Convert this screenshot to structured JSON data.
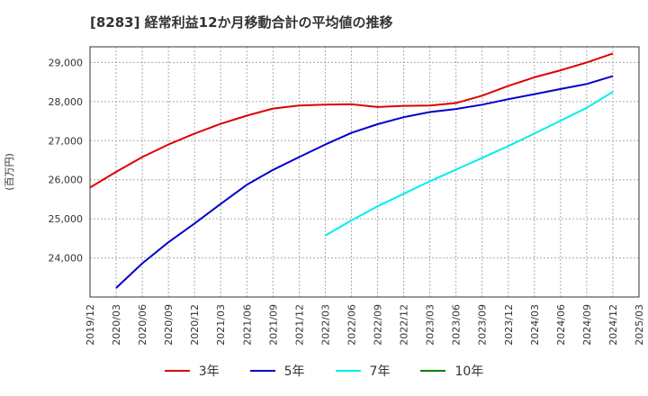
{
  "title": "[8283]  経常利益12か月移動合計の平均値の推移",
  "chart_data": {
    "type": "line",
    "title": "[8283]  経常利益12か月移動合計の平均値の推移",
    "ylabel": "(百万円)",
    "xlabel": "",
    "x_ticks": [
      "2019/12",
      "2020/03",
      "2020/06",
      "2020/09",
      "2020/12",
      "2021/03",
      "2021/06",
      "2021/09",
      "2021/12",
      "2022/03",
      "2022/06",
      "2022/09",
      "2022/12",
      "2023/03",
      "2023/06",
      "2023/09",
      "2023/12",
      "2024/03",
      "2024/06",
      "2024/09",
      "2024/12",
      "2025/03"
    ],
    "y_ticks": [
      "24,000",
      "25,000",
      "26,000",
      "27,000",
      "28,000",
      "29,000"
    ],
    "y_tick_values": [
      24000,
      25000,
      26000,
      27000,
      28000,
      29000
    ],
    "ylim": [
      23000,
      29400
    ],
    "xlim": [
      "2019/12",
      "2025/03"
    ],
    "grid": true,
    "legend_position": "bottom",
    "series": [
      {
        "name": "3年",
        "color": "#dd0000",
        "points": [
          [
            "2019/12",
            25800
          ],
          [
            "2020/03",
            26200
          ],
          [
            "2020/06",
            26580
          ],
          [
            "2020/09",
            26900
          ],
          [
            "2020/12",
            27180
          ],
          [
            "2021/03",
            27430
          ],
          [
            "2021/06",
            27640
          ],
          [
            "2021/09",
            27820
          ],
          [
            "2021/12",
            27900
          ],
          [
            "2022/03",
            27920
          ],
          [
            "2022/06",
            27930
          ],
          [
            "2022/09",
            27860
          ],
          [
            "2022/12",
            27890
          ],
          [
            "2023/03",
            27900
          ],
          [
            "2023/06",
            27960
          ],
          [
            "2023/09",
            28150
          ],
          [
            "2023/12",
            28400
          ],
          [
            "2024/03",
            28620
          ],
          [
            "2024/06",
            28800
          ],
          [
            "2024/09",
            29000
          ],
          [
            "2024/12",
            29230
          ]
        ]
      },
      {
        "name": "5年",
        "color": "#0000cc",
        "points": [
          [
            "2020/03",
            23230
          ],
          [
            "2020/06",
            23860
          ],
          [
            "2020/09",
            24400
          ],
          [
            "2020/12",
            24880
          ],
          [
            "2021/03",
            25380
          ],
          [
            "2021/06",
            25870
          ],
          [
            "2021/09",
            26250
          ],
          [
            "2021/12",
            26580
          ],
          [
            "2022/03",
            26900
          ],
          [
            "2022/06",
            27200
          ],
          [
            "2022/09",
            27420
          ],
          [
            "2022/12",
            27600
          ],
          [
            "2023/03",
            27730
          ],
          [
            "2023/06",
            27810
          ],
          [
            "2023/09",
            27920
          ],
          [
            "2023/12",
            28060
          ],
          [
            "2024/03",
            28190
          ],
          [
            "2024/06",
            28320
          ],
          [
            "2024/09",
            28450
          ],
          [
            "2024/12",
            28650
          ]
        ]
      },
      {
        "name": "7年",
        "color": "#00eeee",
        "points": [
          [
            "2022/03",
            24570
          ],
          [
            "2022/06",
            24960
          ],
          [
            "2022/09",
            25320
          ],
          [
            "2022/12",
            25640
          ],
          [
            "2023/03",
            25960
          ],
          [
            "2023/06",
            26260
          ],
          [
            "2023/09",
            26560
          ],
          [
            "2023/12",
            26860
          ],
          [
            "2024/03",
            27180
          ],
          [
            "2024/06",
            27510
          ],
          [
            "2024/09",
            27840
          ],
          [
            "2024/12",
            28250
          ]
        ]
      },
      {
        "name": "10年",
        "color": "#008000",
        "points": []
      }
    ]
  },
  "colors": {
    "gridline": "#aaaaaa",
    "plot_border": "#333333",
    "tick_label": "#333333"
  }
}
